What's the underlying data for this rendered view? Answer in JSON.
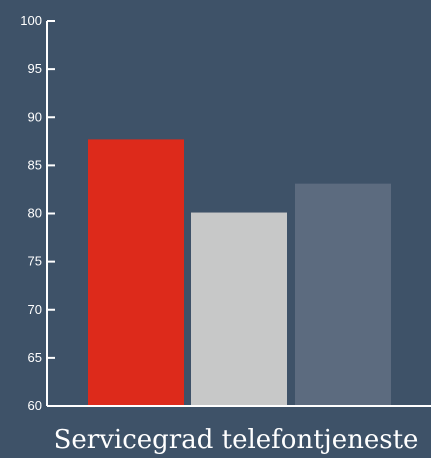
{
  "chart_data": {
    "type": "bar",
    "categories": [
      "",
      "",
      ""
    ],
    "values": [
      87.7,
      80.1,
      83.1
    ],
    "colors": [
      "#dd2a1b",
      "#c7c8c8",
      "#5c6b7f"
    ],
    "background_color": "#3e5268",
    "axis_color": "#ffffff",
    "title": "",
    "xlabel": "Servicegrad telefontjeneste",
    "ylabel": "",
    "ylim": [
      60,
      100
    ],
    "yticks": [
      "60",
      "65",
      "70",
      "75",
      "80",
      "85",
      "90",
      "95",
      "100"
    ],
    "grid": false,
    "legend": "none"
  }
}
